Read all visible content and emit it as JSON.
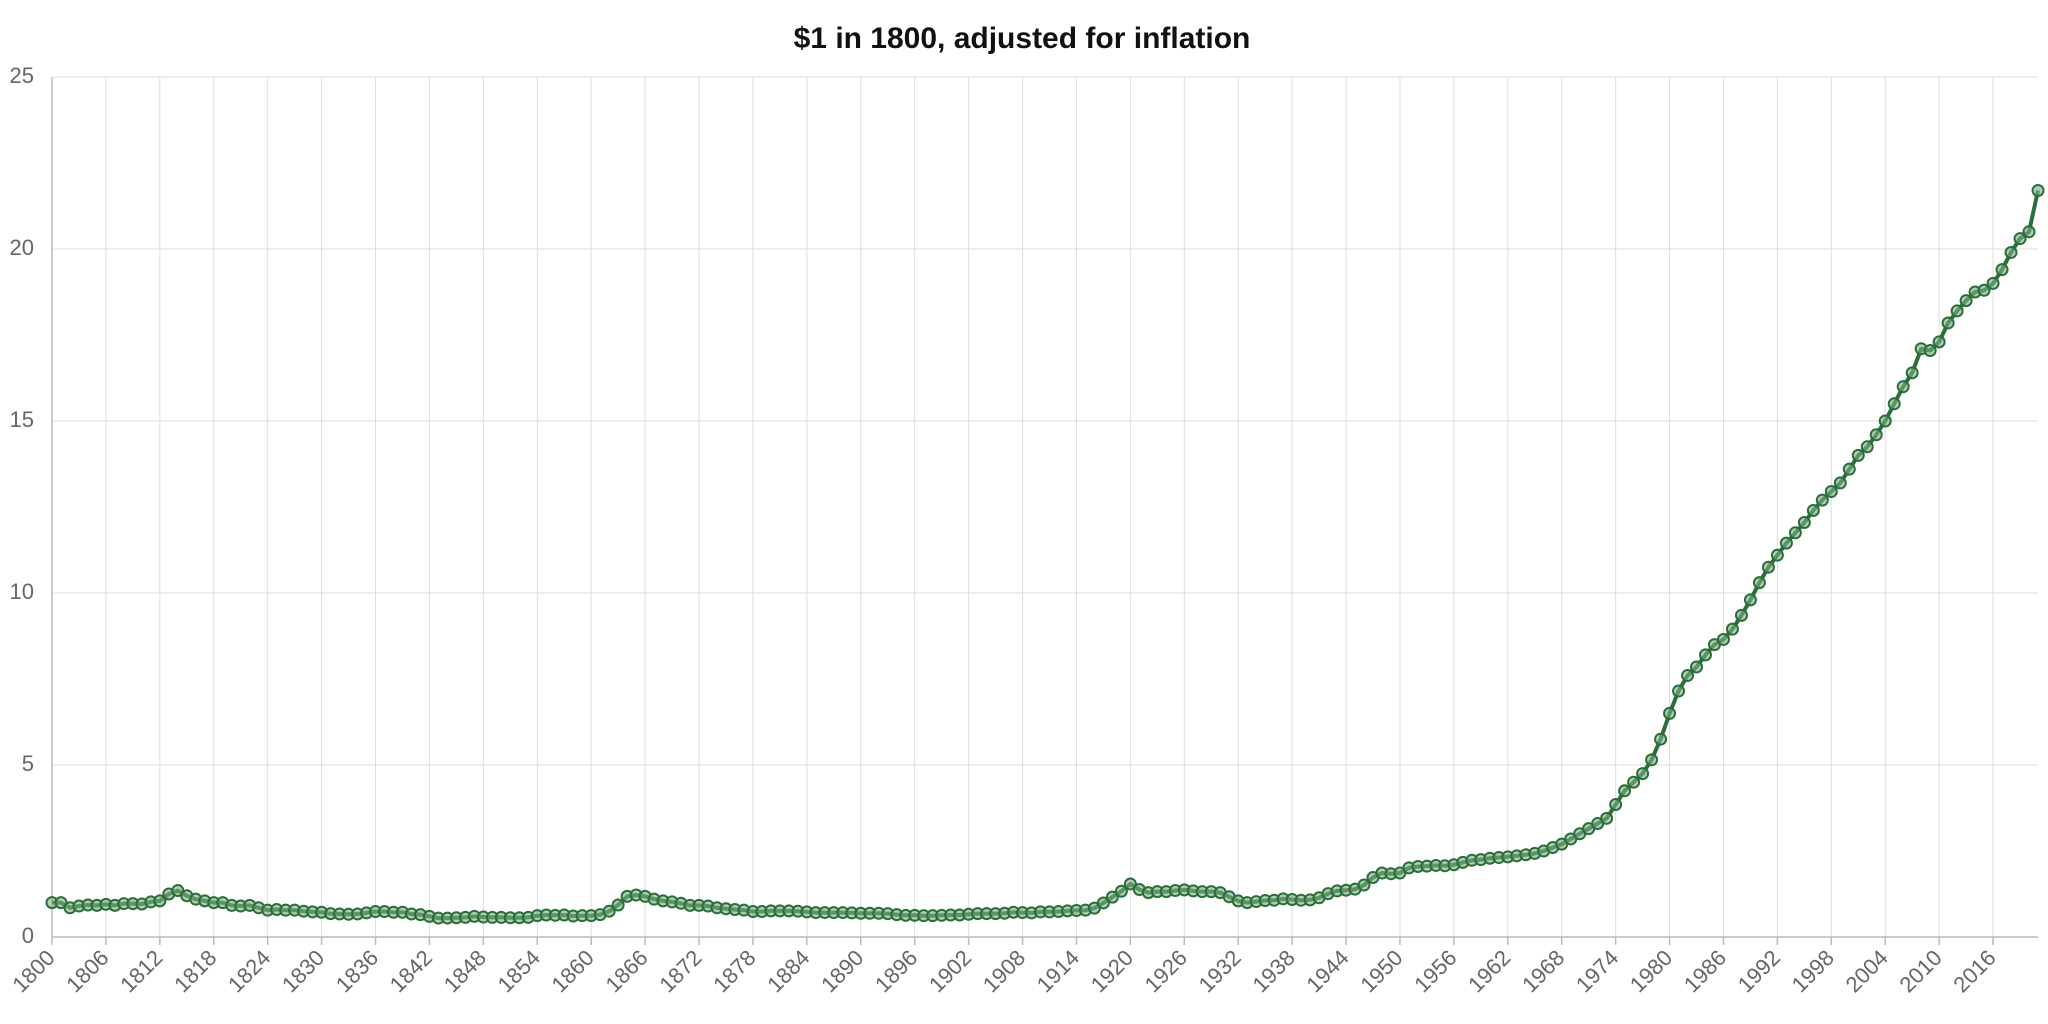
{
  "chart_data": {
    "type": "line",
    "title": "$1 in 1800, adjusted for inflation",
    "x": [
      1800,
      1801,
      1802,
      1803,
      1804,
      1805,
      1806,
      1807,
      1808,
      1809,
      1810,
      1811,
      1812,
      1813,
      1814,
      1815,
      1816,
      1817,
      1818,
      1819,
      1820,
      1821,
      1822,
      1823,
      1824,
      1825,
      1826,
      1827,
      1828,
      1829,
      1830,
      1831,
      1832,
      1833,
      1834,
      1835,
      1836,
      1837,
      1838,
      1839,
      1840,
      1841,
      1842,
      1843,
      1844,
      1845,
      1846,
      1847,
      1848,
      1849,
      1850,
      1851,
      1852,
      1853,
      1854,
      1855,
      1856,
      1857,
      1858,
      1859,
      1860,
      1861,
      1862,
      1863,
      1864,
      1865,
      1866,
      1867,
      1868,
      1869,
      1870,
      1871,
      1872,
      1873,
      1874,
      1875,
      1876,
      1877,
      1878,
      1879,
      1880,
      1881,
      1882,
      1883,
      1884,
      1885,
      1886,
      1887,
      1888,
      1889,
      1890,
      1891,
      1892,
      1893,
      1894,
      1895,
      1896,
      1897,
      1898,
      1899,
      1900,
      1901,
      1902,
      1903,
      1904,
      1905,
      1906,
      1907,
      1908,
      1909,
      1910,
      1911,
      1912,
      1913,
      1914,
      1915,
      1916,
      1917,
      1918,
      1919,
      1920,
      1921,
      1922,
      1923,
      1924,
      1925,
      1926,
      1927,
      1928,
      1929,
      1930,
      1931,
      1932,
      1933,
      1934,
      1935,
      1936,
      1937,
      1938,
      1939,
      1940,
      1941,
      1942,
      1943,
      1944,
      1945,
      1946,
      1947,
      1948,
      1949,
      1950,
      1951,
      1952,
      1953,
      1954,
      1955,
      1956,
      1957,
      1958,
      1959,
      1960,
      1961,
      1962,
      1963,
      1964,
      1965,
      1966,
      1967,
      1968,
      1969,
      1970,
      1971,
      1972,
      1973,
      1974,
      1975,
      1976,
      1977,
      1978,
      1979,
      1980,
      1981,
      1982,
      1983,
      1984,
      1985,
      1986,
      1987,
      1988,
      1989,
      1990,
      1991,
      1992,
      1993,
      1994,
      1995,
      1996,
      1997,
      1998,
      1999,
      2000,
      2001,
      2002,
      2003,
      2004,
      2005,
      2006,
      2007,
      2008,
      2009,
      2010,
      2011,
      2012,
      2013,
      2014,
      2015,
      2016,
      2017,
      2018,
      2019,
      2020,
      2021
    ],
    "series": [
      {
        "color": "#2a6e3a",
        "values": [
          1.0,
          1.0,
          0.85,
          0.9,
          0.93,
          0.92,
          0.95,
          0.92,
          0.97,
          0.97,
          0.96,
          1.02,
          1.05,
          1.25,
          1.35,
          1.2,
          1.1,
          1.05,
          1.0,
          1.0,
          0.92,
          0.9,
          0.92,
          0.85,
          0.78,
          0.8,
          0.78,
          0.78,
          0.75,
          0.73,
          0.72,
          0.68,
          0.67,
          0.66,
          0.67,
          0.7,
          0.74,
          0.74,
          0.72,
          0.72,
          0.67,
          0.65,
          0.6,
          0.55,
          0.55,
          0.56,
          0.57,
          0.6,
          0.58,
          0.57,
          0.57,
          0.56,
          0.56,
          0.57,
          0.62,
          0.64,
          0.63,
          0.64,
          0.61,
          0.62,
          0.62,
          0.65,
          0.75,
          0.93,
          1.18,
          1.22,
          1.18,
          1.1,
          1.05,
          1.02,
          0.98,
          0.92,
          0.92,
          0.9,
          0.85,
          0.82,
          0.8,
          0.78,
          0.74,
          0.74,
          0.76,
          0.76,
          0.76,
          0.75,
          0.73,
          0.71,
          0.71,
          0.71,
          0.71,
          0.7,
          0.69,
          0.69,
          0.69,
          0.68,
          0.65,
          0.63,
          0.63,
          0.62,
          0.62,
          0.63,
          0.64,
          0.64,
          0.66,
          0.68,
          0.68,
          0.68,
          0.69,
          0.72,
          0.71,
          0.7,
          0.73,
          0.73,
          0.74,
          0.76,
          0.77,
          0.78,
          0.84,
          0.99,
          1.16,
          1.33,
          1.54,
          1.38,
          1.29,
          1.32,
          1.32,
          1.35,
          1.37,
          1.34,
          1.32,
          1.32,
          1.29,
          1.17,
          1.05,
          1.0,
          1.03,
          1.06,
          1.07,
          1.11,
          1.09,
          1.07,
          1.08,
          1.14,
          1.26,
          1.34,
          1.36,
          1.39,
          1.51,
          1.73,
          1.86,
          1.84,
          1.86,
          2.01,
          2.05,
          2.06,
          2.08,
          2.07,
          2.1,
          2.17,
          2.23,
          2.25,
          2.29,
          2.31,
          2.33,
          2.36,
          2.39,
          2.43,
          2.5,
          2.6,
          2.7,
          2.85,
          3.0,
          3.15,
          3.3,
          3.45,
          3.85,
          4.25,
          4.5,
          4.75,
          5.15,
          5.75,
          6.5,
          7.15,
          7.6,
          7.85,
          8.2,
          8.5,
          8.65,
          8.95,
          9.35,
          9.8,
          10.3,
          10.75,
          11.1,
          11.45,
          11.75,
          12.05,
          12.4,
          12.7,
          12.95,
          13.2,
          13.6,
          14.0,
          14.25,
          14.6,
          15.0,
          15.5,
          16.0,
          16.4,
          17.1,
          17.05,
          17.3,
          17.85,
          18.2,
          18.5,
          18.75,
          18.8,
          19.0,
          19.4,
          19.9,
          20.3,
          20.5,
          21.7
        ]
      }
    ],
    "xlim": [
      1800,
      2021
    ],
    "xticks": [
      1800,
      1806,
      1812,
      1818,
      1824,
      1830,
      1836,
      1842,
      1848,
      1854,
      1860,
      1866,
      1872,
      1878,
      1884,
      1890,
      1896,
      1902,
      1908,
      1914,
      1920,
      1926,
      1932,
      1938,
      1944,
      1950,
      1956,
      1962,
      1968,
      1974,
      1980,
      1986,
      1992,
      1998,
      2004,
      2010,
      2016
    ],
    "ylim": [
      0,
      25
    ],
    "yticks": [
      0,
      5,
      10,
      15,
      20,
      25
    ],
    "grid": true
  }
}
